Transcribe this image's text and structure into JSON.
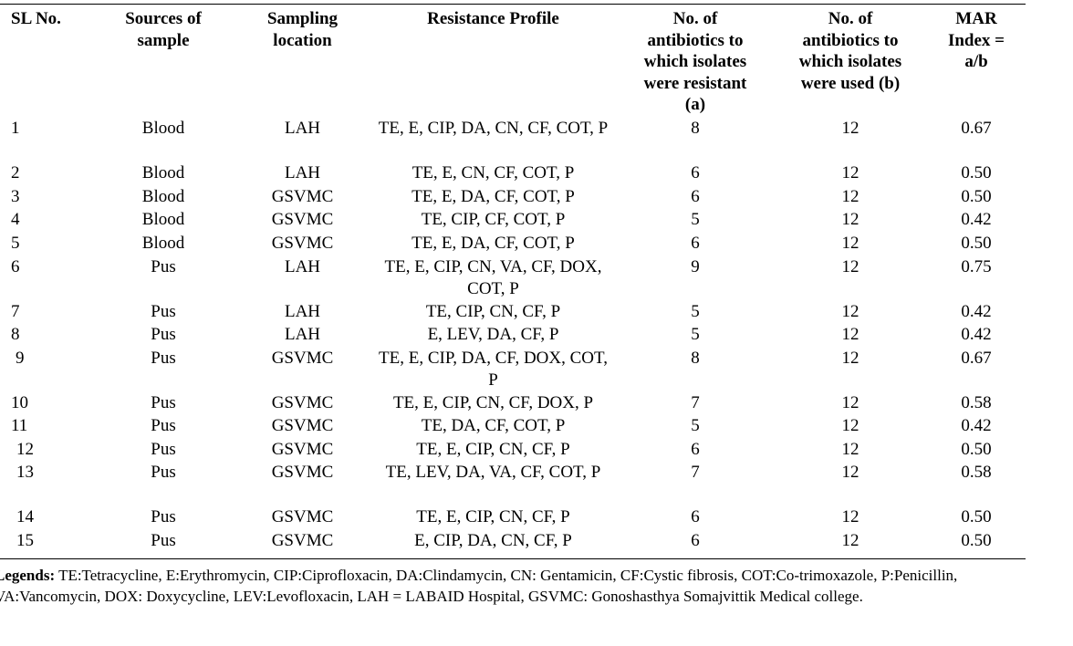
{
  "headers": {
    "sl": "SL No.",
    "source": "Sources of sample",
    "location": "Sampling location",
    "profile": "Resistance Profile",
    "resistant": "No. of antibiotics to which isolates were resistant (a)",
    "used": "No. of antibiotics to which isolates were used (b)",
    "mar": "MAR Index = a/b"
  },
  "rows": [
    {
      "sl": "1",
      "source": "Blood",
      "location": "LAH",
      "profile": "TE, E, CIP, DA, CN, CF, COT, P",
      "resistant": "8",
      "used": "12",
      "mar": "0.67"
    },
    {
      "sl": "2",
      "source": "Blood",
      "location": "LAH",
      "profile": "TE, E, CN, CF, COT, P",
      "resistant": "6",
      "used": "12",
      "mar": "0.50"
    },
    {
      "sl": "3",
      "source": "Blood",
      "location": "GSVMC",
      "profile": "TE, E, DA, CF, COT, P",
      "resistant": "6",
      "used": "12",
      "mar": "0.50"
    },
    {
      "sl": "4",
      "source": "Blood",
      "location": "GSVMC",
      "profile": "TE, CIP, CF, COT, P",
      "resistant": "5",
      "used": "12",
      "mar": "0.42"
    },
    {
      "sl": "5",
      "source": "Blood",
      "location": "GSVMC",
      "profile": "TE, E, DA, CF, COT, P",
      "resistant": "6",
      "used": "12",
      "mar": "0.50"
    },
    {
      "sl": "6",
      "source": "Pus",
      "location": "LAH",
      "profile": "TE, E, CIP, CN, VA, CF, DOX, COT, P",
      "resistant": "9",
      "used": "12",
      "mar": "0.75"
    },
    {
      "sl": "7",
      "source": "Pus",
      "location": "LAH",
      "profile": "TE, CIP, CN, CF, P",
      "resistant": "5",
      "used": "12",
      "mar": "0.42"
    },
    {
      "sl": "8",
      "source": "Pus",
      "location": "LAH",
      "profile": "E, LEV, DA, CF, P",
      "resistant": "5",
      "used": "12",
      "mar": "0.42"
    },
    {
      "sl": "9",
      "source": "Pus",
      "location": "GSVMC",
      "profile": "TE, E, CIP, DA, CF, DOX, COT, P",
      "resistant": "8",
      "used": "12",
      "mar": "0.67"
    },
    {
      "sl": "10",
      "source": "Pus",
      "location": "GSVMC",
      "profile": "TE, E, CIP, CN, CF, DOX, P",
      "resistant": "7",
      "used": "12",
      "mar": "0.58"
    },
    {
      "sl": "11",
      "source": "Pus",
      "location": "GSVMC",
      "profile": "TE, DA, CF, COT, P",
      "resistant": "5",
      "used": "12",
      "mar": "0.42"
    },
    {
      "sl": "12",
      "source": "Pus",
      "location": "GSVMC",
      "profile": "TE, E, CIP, CN, CF, P",
      "resistant": "6",
      "used": "12",
      "mar": "0.50"
    },
    {
      "sl": "13",
      "source": "Pus",
      "location": "GSVMC",
      "profile": "TE, LEV, DA, VA, CF, COT, P",
      "resistant": "7",
      "used": "12",
      "mar": "0.58"
    },
    {
      "sl": "14",
      "source": "Pus",
      "location": "GSVMC",
      "profile": "TE, E, CIP, CN, CF, P",
      "resistant": "6",
      "used": "12",
      "mar": "0.50"
    },
    {
      "sl": "15",
      "source": "Pus",
      "location": "GSVMC",
      "profile": "E, CIP, DA, CN, CF, P",
      "resistant": "6",
      "used": "12",
      "mar": "0.50"
    }
  ],
  "legend": {
    "label": "Legends:",
    "text": " TE:Tetracycline, E:Erythromycin, CIP:Ciprofloxacin, DA:Clindamycin, CN: Gentamicin, CF:Cystic fibrosis, COT:Co-trimoxazole, P:Penicillin, VA:Vancomycin, DOX: Doxycycline, LEV:Levofloxacin, LAH = LABAID Hospital, GSVMC: Gonoshasthya Somajvittik Medical college."
  }
}
